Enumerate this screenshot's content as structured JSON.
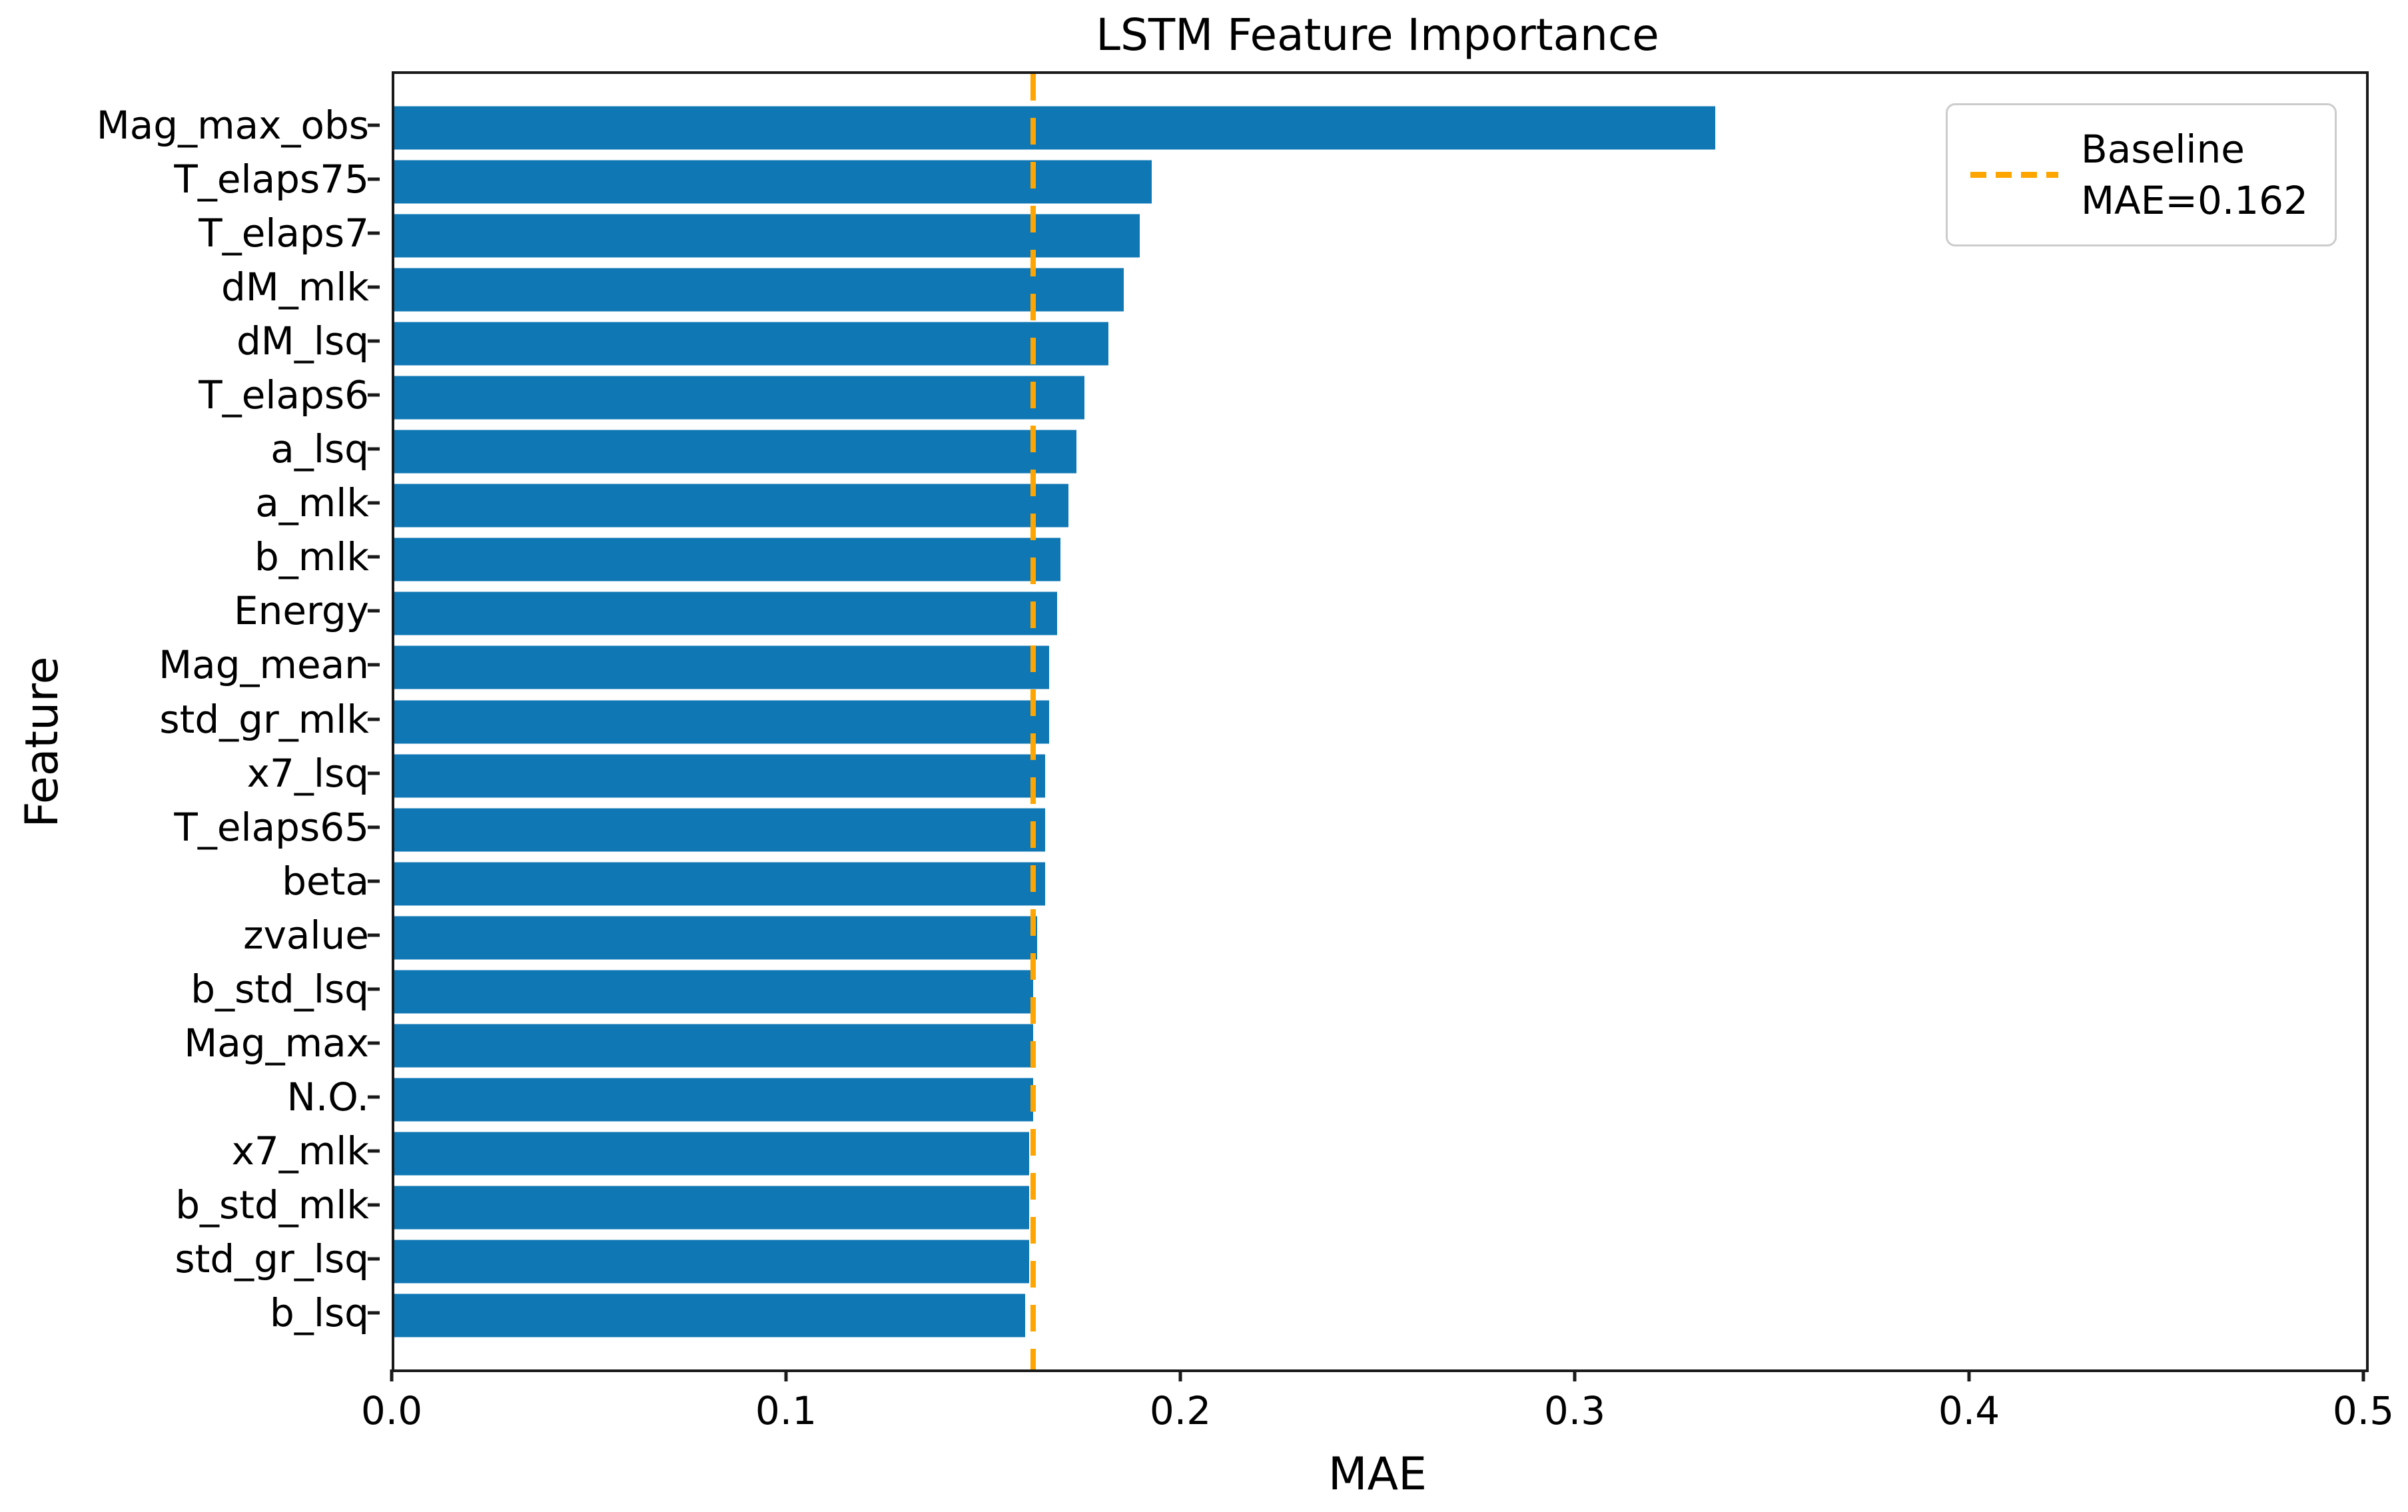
{
  "title": "LSTM Feature Importance",
  "axes": {
    "xlabel": "MAE",
    "ylabel": "Feature"
  },
  "legend": {
    "line1": "Baseline",
    "line2": "MAE=0.162"
  },
  "colors": {
    "bar": "#0f77b4",
    "baseline": "#ffa500",
    "spine": "#1a1a1a",
    "legend_border": "#cccccc",
    "text": "#000000"
  },
  "chart_data": {
    "type": "bar",
    "orientation": "horizontal",
    "title": "LSTM Feature Importance",
    "xlabel": "MAE",
    "ylabel": "Feature",
    "xlim": [
      0.0,
      0.5
    ],
    "xticks": [
      0.0,
      0.1,
      0.2,
      0.3,
      0.4,
      0.5
    ],
    "xtick_labels": [
      "0.0",
      "0.1",
      "0.2",
      "0.3",
      "0.4",
      "0.5"
    ],
    "grid": false,
    "legend_position": "upper right",
    "categories": [
      "Mag_max_obs",
      "T_elaps75",
      "T_elaps7",
      "dM_mlk",
      "dM_lsq",
      "T_elaps6",
      "a_lsq",
      "a_mlk",
      "b_mlk",
      "Energy",
      "Mag_mean",
      "std_gr_mlk",
      "x7_lsq",
      "T_elaps65",
      "beta",
      "zvalue",
      "b_std_lsq",
      "Mag_max",
      "N.O.",
      "x7_mlk",
      "b_std_mlk",
      "std_gr_lsq",
      "b_lsq"
    ],
    "values": [
      0.335,
      0.192,
      0.189,
      0.185,
      0.181,
      0.175,
      0.173,
      0.171,
      0.169,
      0.168,
      0.166,
      0.166,
      0.165,
      0.165,
      0.165,
      0.163,
      0.162,
      0.162,
      0.162,
      0.161,
      0.161,
      0.161,
      0.16
    ],
    "baseline": {
      "value": 0.162,
      "style": "dashed",
      "color": "#ffa500",
      "label": "Baseline MAE=0.162"
    }
  }
}
